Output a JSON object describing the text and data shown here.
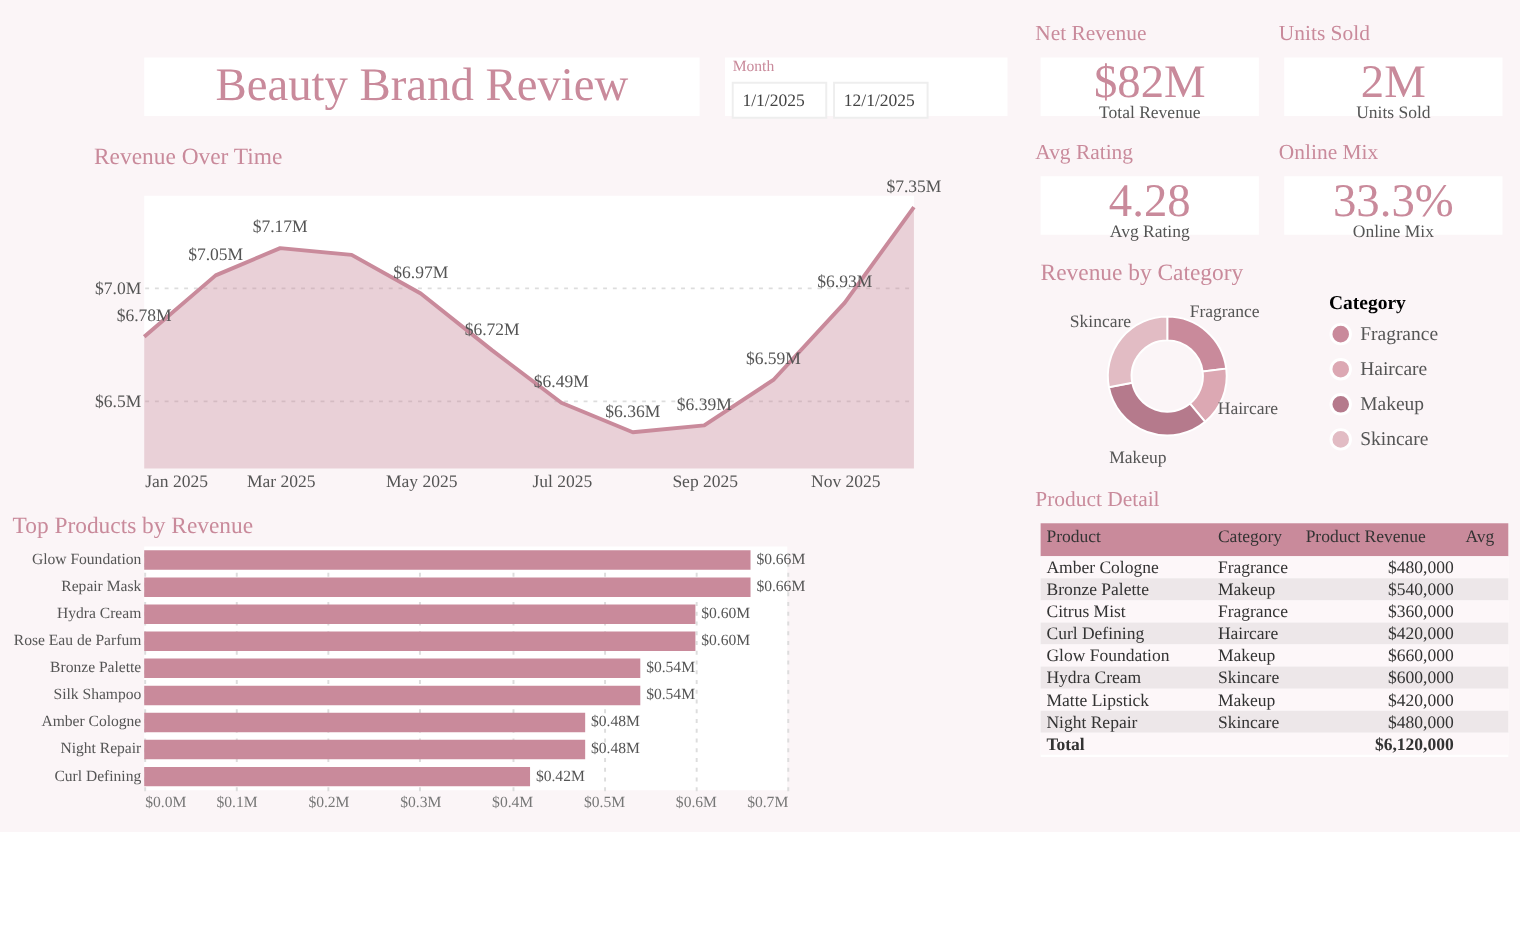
{
  "chart_data": [
    {
      "type": "other",
      "title": "Beauty Brand Review"
    },
    {
      "type": "other",
      "annotations": [
        "Month",
        "1/1/2025",
        "12/1/2025"
      ]
    },
    {
      "type": "other",
      "title": "Net Revenue",
      "annotations": [
        "$82M",
        "Total Revenue"
      ]
    },
    {
      "type": "other",
      "title": "Units Sold",
      "annotations": [
        "2M",
        "Units Sold"
      ]
    },
    {
      "type": "other",
      "title": "Avg Rating",
      "annotations": [
        "4.28",
        "Avg Rating"
      ]
    },
    {
      "type": "other",
      "title": "Online Mix",
      "annotations": [
        "33.3%",
        "Online Mix"
      ]
    },
    {
      "type": "area",
      "title": "Revenue Over Time",
      "x": [
        "2025-01",
        "2025-02",
        "2025-03",
        "2025-04",
        "2025-05",
        "2025-06",
        "2025-07",
        "2025-08",
        "2025-09",
        "2025-10",
        "2025-11",
        "2025-12"
      ],
      "series": [
        {
          "color": "#c98a9b",
          "values": [
            6.78,
            7.05,
            7.17,
            7.14,
            6.97,
            6.72,
            6.49,
            6.36,
            6.39,
            6.59,
            6.93,
            7.35
          ]
        }
      ],
      "value_labels": [
        "$6.78M",
        "$7.05M",
        "$7.17M",
        null,
        "$6.97M",
        "$6.72M",
        "$6.49M",
        "$6.36M",
        "$6.39M",
        "$6.59M",
        "$6.93M",
        "$7.35M"
      ],
      "xlim": [
        "2025-01",
        "2025-12"
      ],
      "xticks": [
        {
          "value": "2025-01",
          "label": "Jan 2025"
        },
        {
          "value": "2025-03",
          "label": "Mar 2025"
        },
        {
          "value": "2025-05",
          "label": "May 2025"
        },
        {
          "value": "2025-07",
          "label": "Jul 2025"
        },
        {
          "value": "2025-09",
          "label": "Sep 2025"
        },
        {
          "value": "2025-11",
          "label": "Nov 2025"
        }
      ],
      "ylim": [
        6.2,
        7.4
      ],
      "yticks": [
        {
          "value": 6.5,
          "label": "$6.5M"
        },
        {
          "value": 7.0,
          "label": "$7.0M"
        }
      ],
      "grid": "y"
    },
    {
      "type": "donut",
      "title": "Revenue by Category",
      "legend_title": "Category",
      "categories": [
        "Fragrance",
        "Haircare",
        "Makeup",
        "Skincare"
      ],
      "values": [
        23,
        16,
        33,
        28
      ],
      "colors": [
        "#c98a9b",
        "#dca8b3",
        "#b57a8c",
        "#e2bcc4"
      ],
      "legend": "right"
    },
    {
      "type": "bar",
      "orientation": "horizontal",
      "title": "Top Products by Revenue",
      "categories": [
        "Glow Foundation",
        "Repair Mask",
        "Hydra Cream",
        "Rose Eau de Parfum",
        "Bronze Palette",
        "Silk Shampoo",
        "Amber Cologne",
        "Night Repair",
        "Curl Defining"
      ],
      "values": [
        0.66,
        0.66,
        0.6,
        0.6,
        0.54,
        0.54,
        0.48,
        0.48,
        0.42
      ],
      "value_labels": [
        "$0.66M",
        "$0.66M",
        "$0.60M",
        "$0.60M",
        "$0.54M",
        "$0.54M",
        "$0.48M",
        "$0.48M",
        "$0.42M"
      ],
      "color": "#c98a9b",
      "xlim": [
        0,
        0.7
      ],
      "xticks": [
        {
          "value": 0,
          "label": "$0.0M"
        },
        {
          "value": 0.1,
          "label": "$0.1M"
        },
        {
          "value": 0.2,
          "label": "$0.2M"
        },
        {
          "value": 0.3,
          "label": "$0.3M"
        },
        {
          "value": 0.4,
          "label": "$0.4M"
        },
        {
          "value": 0.5,
          "label": "$0.5M"
        },
        {
          "value": 0.6,
          "label": "$0.6M"
        },
        {
          "value": 0.7,
          "label": "$0.7M"
        }
      ],
      "grid": "x"
    },
    {
      "type": "other",
      "title": "Product Detail",
      "categories": [
        "Product",
        "Category",
        "Product Revenue",
        "Avg"
      ],
      "cell_labels": [
        [
          "Amber Cologne",
          "Fragrance",
          "$480,000"
        ],
        [
          "Bronze Palette",
          "Makeup",
          "$540,000"
        ],
        [
          "Citrus Mist",
          "Fragrance",
          "$360,000"
        ],
        [
          "Curl Defining",
          "Haircare",
          "$420,000"
        ],
        [
          "Glow Foundation",
          "Makeup",
          "$660,000"
        ],
        [
          "Hydra Cream",
          "Skincare",
          "$600,000"
        ],
        [
          "Matte Lipstick",
          "Makeup",
          "$420,000"
        ],
        [
          "Night Repair",
          "Skincare",
          "$480,000"
        ],
        [
          "Total",
          null,
          "$6,120,000"
        ]
      ]
    }
  ]
}
